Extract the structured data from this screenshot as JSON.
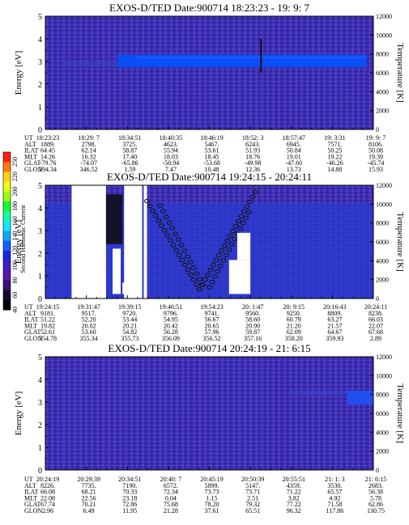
{
  "chart_data": [
    {
      "type": "heatmap",
      "title": "EXOS-D/TED   Date:900714   18:23:23 - 19: 9: 7",
      "ylabel": "Energy [eV]",
      "y2label": "Temperature [K]",
      "ylim": [
        0,
        5
      ],
      "y2lim": [
        0,
        12000
      ],
      "yticks": [
        "0",
        "1",
        "2",
        "3",
        "4",
        "5"
      ],
      "y2ticks": [
        "0",
        "2000",
        "4000",
        "6000",
        "8000",
        "10000",
        "12000"
      ],
      "ephemeris": {
        "labels": [
          "UT",
          "ALT",
          "ILAT",
          "MLT",
          "GLAT",
          "GLON"
        ],
        "columns": [
          [
            "18:23:23",
            "1889.",
            "64.45",
            "14.26",
            "-79.76",
            "294.34"
          ],
          [
            "18:29: 7",
            "2798.",
            "62.14",
            "16.32",
            "-74.07",
            "346.52"
          ],
          [
            "18:34:51",
            "3725.",
            "58.87",
            "17.40",
            "-65.86",
            "1.59"
          ],
          [
            "18:40:35",
            "4623.",
            "55.94",
            "18.03",
            "-58.94",
            "7.47"
          ],
          [
            "18:46:19",
            "5467.",
            "53.61",
            "18.45",
            "-53.68",
            "10.48"
          ],
          [
            "18:52: 3",
            "6243.",
            "51.93",
            "18.76",
            "-49.98",
            "12.36"
          ],
          [
            "18:57:47",
            "6945.",
            "50.84",
            "19.01",
            "-47.60",
            "13.73"
          ],
          [
            "19: 3:31",
            "7571.",
            "50.25",
            "19.22",
            "-46.26",
            "14.88"
          ],
          [
            "19: 9: 7",
            "8106.",
            "50.08",
            "19.39",
            "-45.74",
            "15.93"
          ]
        ]
      },
      "features": {
        "band": {
          "x_range": [
            0.22,
            0.98
          ],
          "energy_range": [
            2.75,
            3.3
          ],
          "color": "#0a4ef5"
        },
        "spike": {
          "x": 0.655,
          "energy_range": [
            2.5,
            4.0
          ]
        }
      }
    },
    {
      "type": "heatmap",
      "title": "EXOS-D/TED   Date:900714   19:24:15 - 20:24:11",
      "ylabel": "Energy [eV]",
      "y2label": "Temperature [K]",
      "ylim": [
        0,
        5
      ],
      "y2lim": [
        0,
        12000
      ],
      "yticks": [
        "0",
        "1",
        "2",
        "3",
        "4",
        "5"
      ],
      "y2ticks": [
        "0",
        "2000",
        "4000",
        "6000",
        "8000",
        "10000",
        "12000"
      ],
      "ephemeris": {
        "labels": [
          "UT",
          "ALT",
          "ILAT",
          "MLT",
          "GLAT",
          "GLON"
        ],
        "columns": [
          [
            "19:24:15",
            "9181.",
            "51.22",
            "19.82",
            "52.61",
            "354.78"
          ],
          [
            "19:31:47",
            "9517.",
            "52.20",
            "20.02",
            "53.60",
            "355.34"
          ],
          [
            "19:39:15",
            "9720.",
            "53.44",
            "20.21",
            "54.82",
            "355.73"
          ],
          [
            "19:46:51",
            "9796.",
            "54.95",
            "20.42",
            "56.28",
            "356.09"
          ],
          [
            "19:54:23",
            "9741.",
            "56.67",
            "20.65",
            "57.96",
            "356.52"
          ],
          [
            "20: 1:47",
            "9560.",
            "58.60",
            "20.90",
            "59.87",
            "357.16"
          ],
          [
            "20: 9:15",
            "9250.",
            "60.79",
            "21.20",
            "62.09",
            "358.20"
          ],
          [
            "20:16:43",
            "8809.",
            "63.27",
            "21.57",
            "64.67",
            "359.93"
          ],
          [
            "20:24:11",
            "8238.",
            "66.03",
            "22.07",
            "67.68",
            "2.89"
          ]
        ]
      },
      "colorbar": {
        "label": "Second Harmonic Current",
        "range": [
          40,
          250
        ],
        "ticks": [
          "250",
          "220",
          "200",
          "180",
          "160",
          "140",
          "120",
          "100",
          "80",
          "60",
          "40"
        ]
      }
    },
    {
      "type": "heatmap",
      "title": "EXOS-D/TED   Date:900714   20:24:19 - 21: 6:15",
      "ylabel": "Energy [eV]",
      "y2label": "Temperature [K]",
      "ylim": [
        0,
        5
      ],
      "y2lim": [
        0,
        12000
      ],
      "yticks": [
        "0",
        "1",
        "2",
        "3",
        "4",
        "5"
      ],
      "y2ticks": [
        "0",
        "2000",
        "4000",
        "6000",
        "8000",
        "10000",
        "12000"
      ],
      "ephemeris": {
        "labels": [
          "UT",
          "ALT",
          "ILAT",
          "MLT",
          "GLAT",
          "GLON"
        ],
        "columns": [
          [
            "20:24:19",
            "8226.",
            "66.08",
            "22.08",
            "67.74",
            "2.96"
          ],
          [
            "20:29:39",
            "7735.",
            "68.21",
            "22.56",
            "70.21",
            "6.49"
          ],
          [
            "20:34:51",
            "7190.",
            "70.33",
            "23.18",
            "72.86",
            "11.95"
          ],
          [
            "20:40: 7",
            "6572.",
            "72.34",
            "0.04",
            "75.68",
            "21.28"
          ],
          [
            "20:45:19",
            "5899.",
            "73.73",
            "1.15",
            "78.20",
            "37.61"
          ],
          [
            "20:50:39",
            "5147.",
            "73.71",
            "2.51",
            "79.32",
            "65.51"
          ],
          [
            "20:55:51",
            "4359.",
            "71.22",
            "3.82",
            "77.22",
            "96.32"
          ],
          [
            "21: 1: 3",
            "3530.",
            "65.57",
            "4.92",
            "71.58",
            "117.86"
          ],
          [
            "21: 6:15",
            "2683.",
            "56.38",
            "5.78",
            "62.86",
            "130.75"
          ]
        ]
      },
      "features": {
        "band": {
          "x_range": [
            0.92,
            1.0
          ],
          "energy_range": [
            2.9,
            3.5
          ],
          "color": "#1f4ff0"
        }
      }
    }
  ]
}
